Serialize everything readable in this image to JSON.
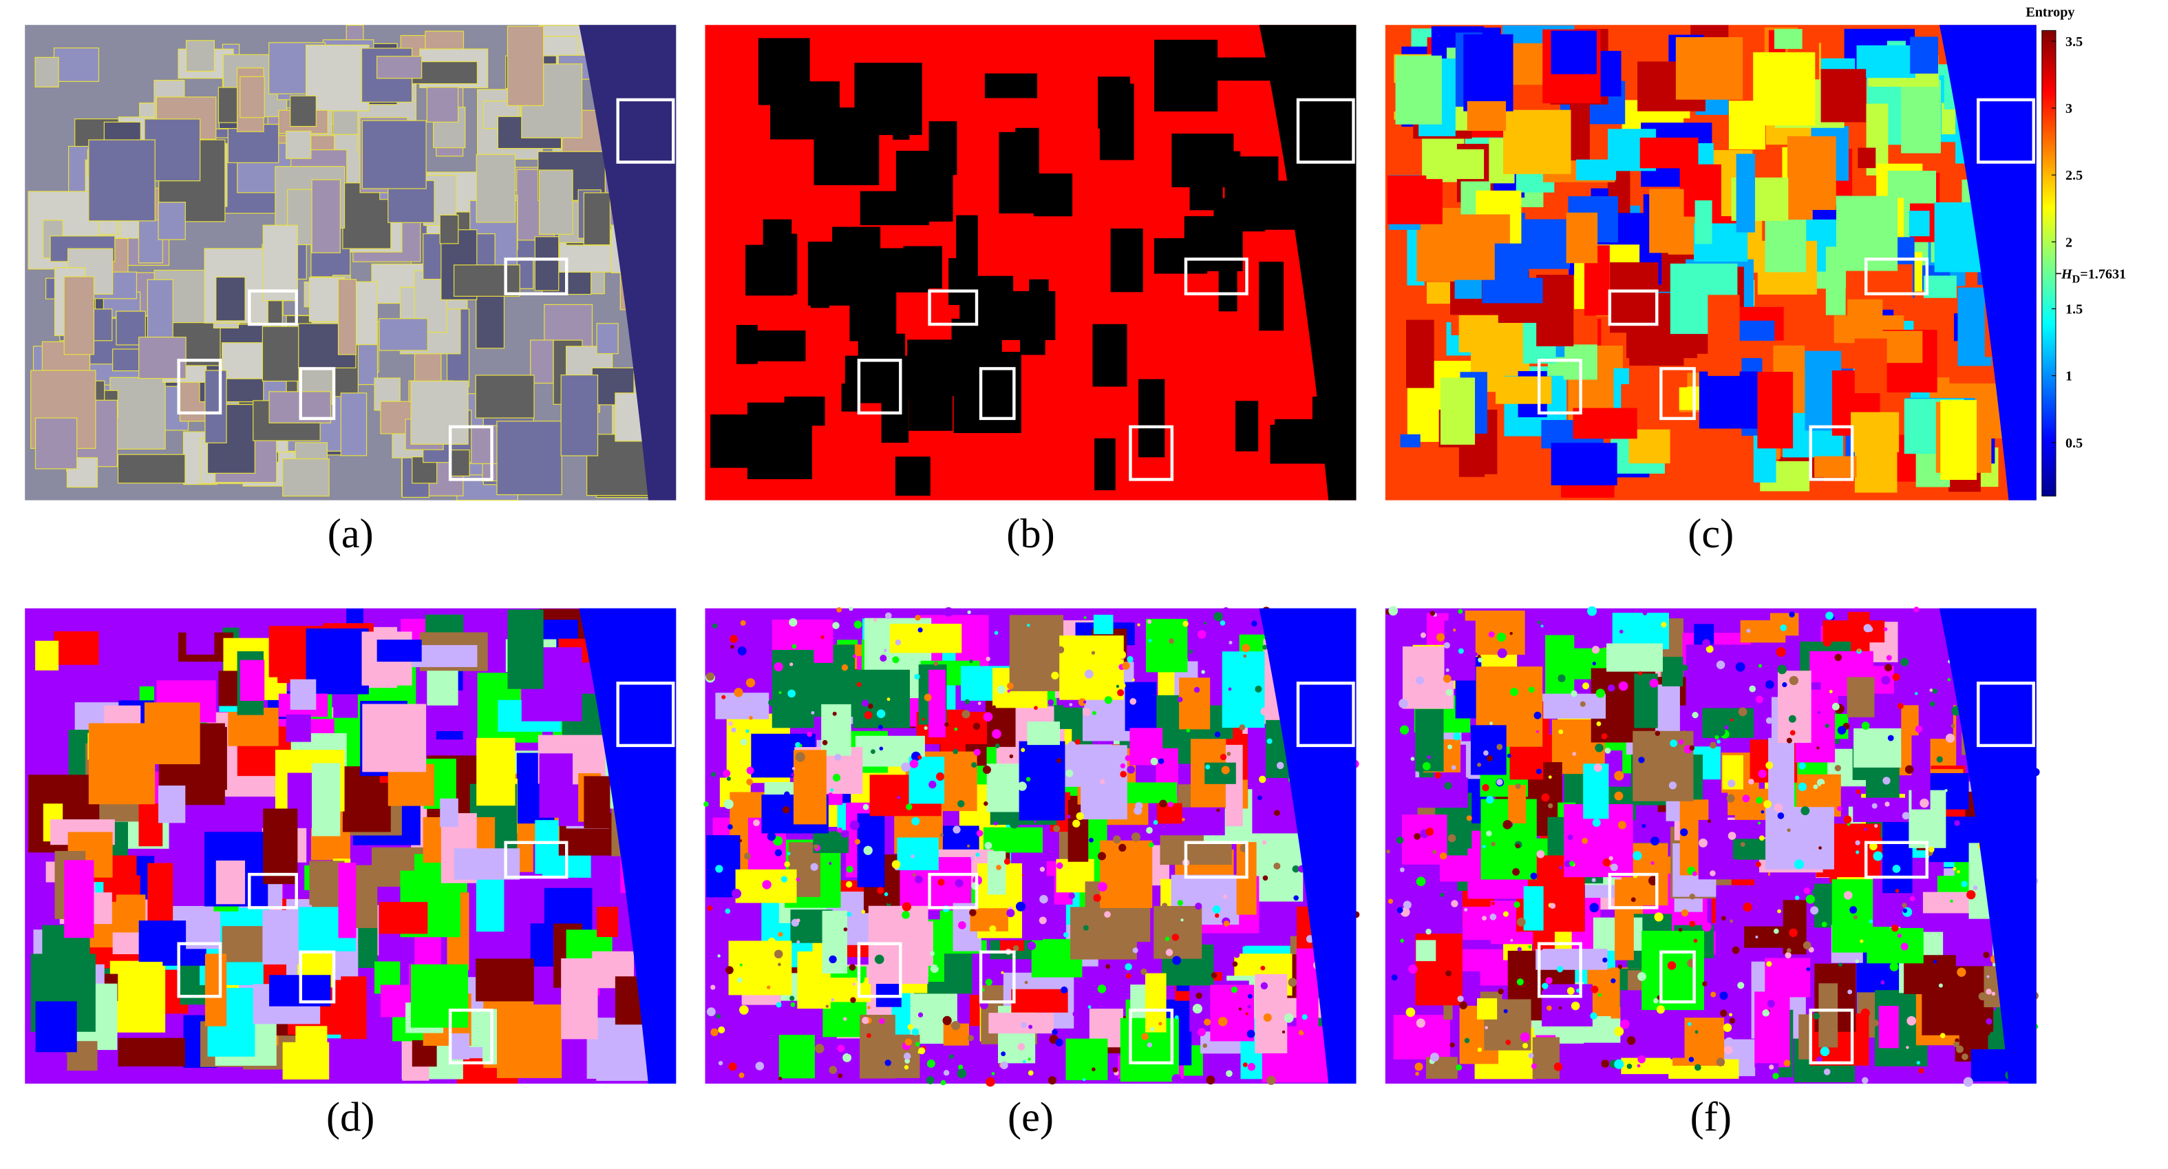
{
  "panels": [
    {
      "label": "(a)"
    },
    {
      "label": "(b)"
    },
    {
      "label": "(c)"
    },
    {
      "label": "(d)"
    },
    {
      "label": "(e)"
    },
    {
      "label": "(f)"
    }
  ],
  "colorbar": {
    "title": "Entropy",
    "lim": [
      0.1,
      3.58
    ],
    "ticks": [
      0.5,
      1,
      1.5,
      2,
      2.5,
      3,
      3.5
    ],
    "threshold": {
      "value": 1.7631,
      "label_parts": [
        "H",
        "D",
        "=1.7631"
      ]
    }
  }
}
